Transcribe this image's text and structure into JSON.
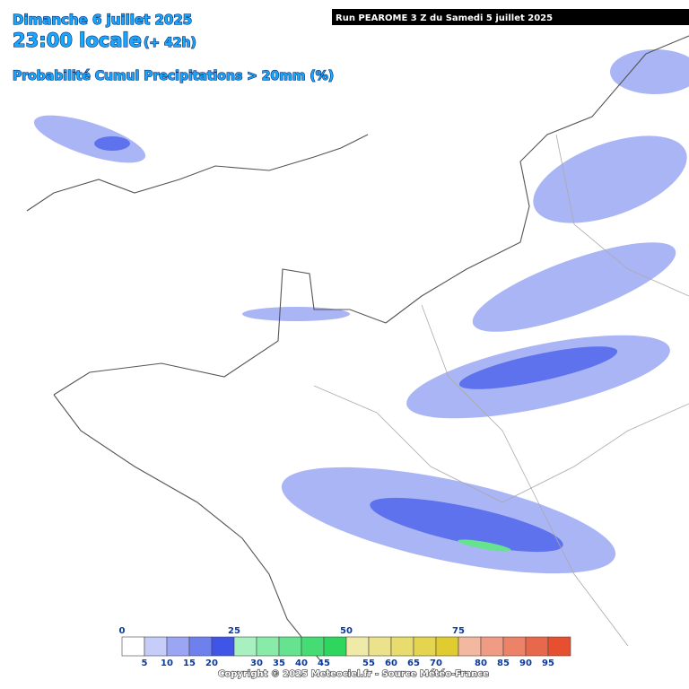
{
  "header": {
    "day": "Dimanche 6 juillet 2025",
    "time": "23:00 locale",
    "lead": "(+ 42h)",
    "product": "Probabilité Cumul Precipitations > 20mm (%)"
  },
  "run": "Run PEAROME 3 Z du Samedi 5 juillet 2025",
  "legend": {
    "top_labels": [
      "0",
      "25",
      "50",
      "75"
    ],
    "bottom_labels": [
      "5",
      "10",
      "15",
      "20",
      "30",
      "35",
      "40",
      "45",
      "55",
      "60",
      "65",
      "70",
      "80",
      "85",
      "90",
      "95"
    ],
    "colors": [
      "#ffffff",
      "#c6cdf9",
      "#9aa6f3",
      "#6e80ee",
      "#3f55e8",
      "#a8f0c0",
      "#88eba8",
      "#66e38e",
      "#46dc74",
      "#2ed65e",
      "#f0eaa8",
      "#ece28c",
      "#e8dc6e",
      "#e4d450",
      "#e0cc30",
      "#f2b8a0",
      "#f09c84",
      "#ec8268",
      "#e8684c",
      "#e65030"
    ]
  },
  "copyright": "Copyright © 2025 Meteociel.fr - Source Météo-France"
}
